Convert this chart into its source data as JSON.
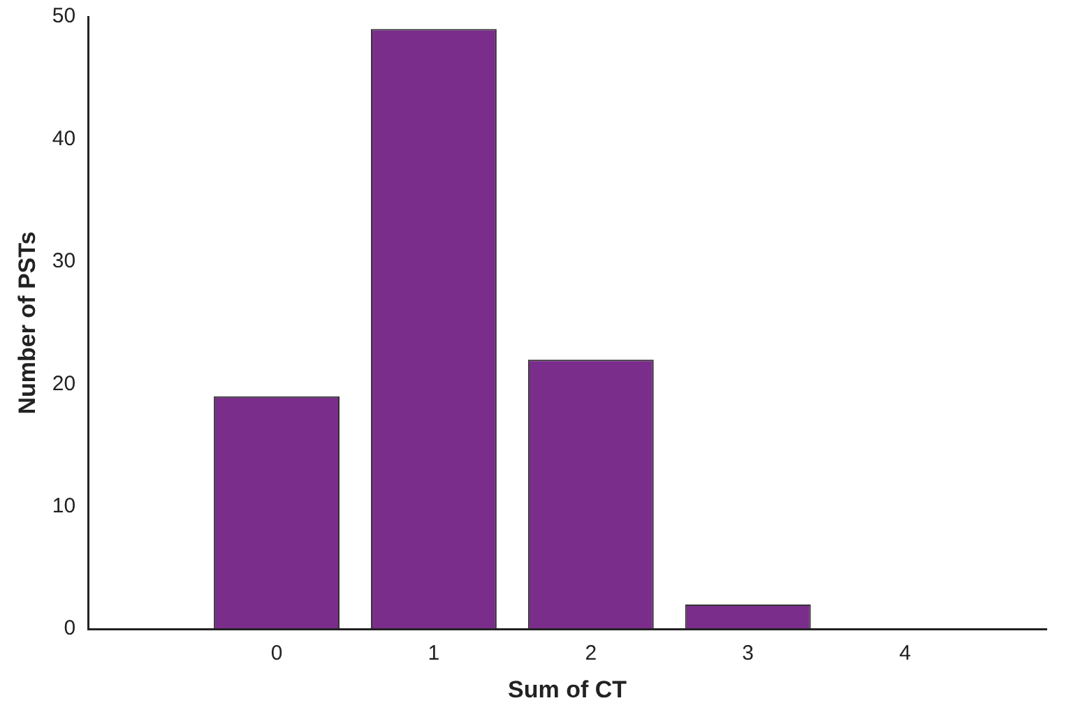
{
  "chart_data": {
    "type": "bar",
    "xlabel": "Sum of CT",
    "ylabel": "Number of PSTs",
    "x": [
      0,
      1,
      2,
      3,
      4
    ],
    "values": [
      19,
      49,
      22,
      2,
      0
    ],
    "color": "#7b2d8b",
    "xlim": [
      -1.2,
      4.9
    ],
    "xticks": [
      0,
      1,
      2,
      3,
      4
    ],
    "ylim": [
      0,
      50
    ],
    "yticks": [
      0,
      10,
      20,
      30,
      40,
      50
    ],
    "grid": false,
    "legend": false
  }
}
